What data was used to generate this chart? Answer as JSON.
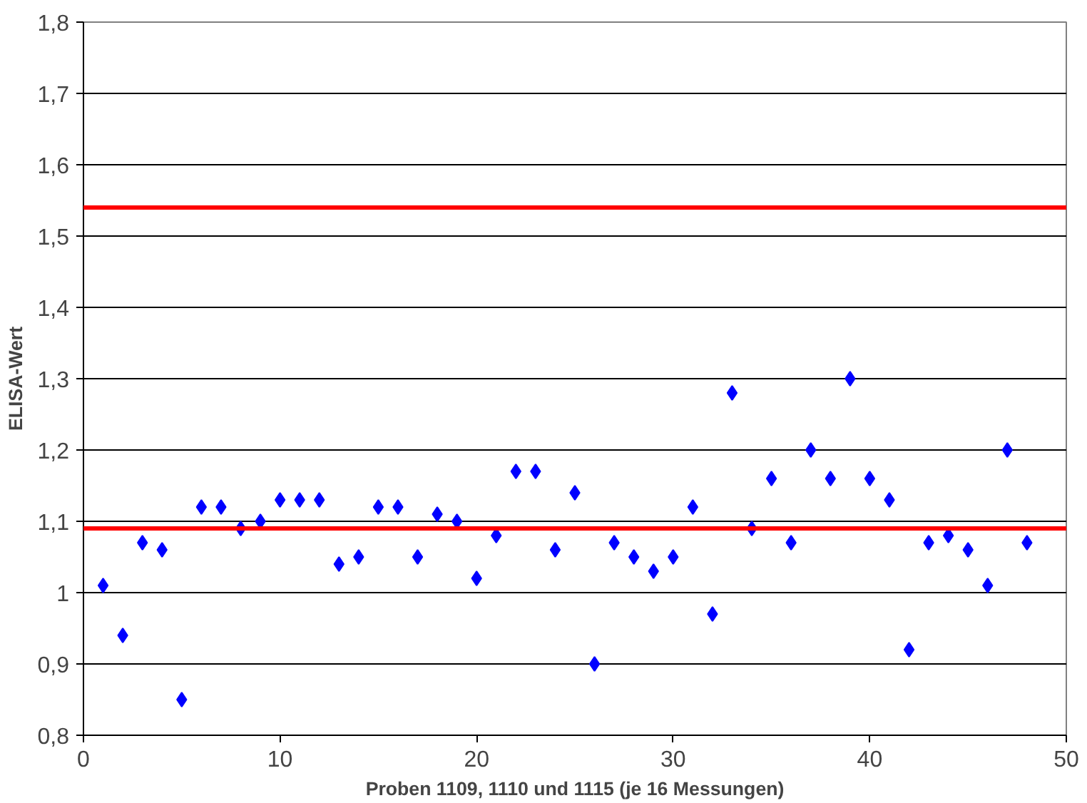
{
  "chart_data": {
    "type": "scatter",
    "xlabel": "Proben 1109, 1110 und 1115 (je 16 Messungen)",
    "ylabel": "ELISA-Wert",
    "x": [
      1,
      2,
      3,
      4,
      5,
      6,
      7,
      8,
      9,
      10,
      11,
      12,
      13,
      14,
      15,
      16,
      17,
      18,
      19,
      20,
      21,
      22,
      23,
      24,
      25,
      26,
      27,
      28,
      29,
      30,
      31,
      32,
      33,
      34,
      35,
      36,
      37,
      38,
      39,
      40,
      41,
      42,
      43,
      44,
      45,
      46,
      47,
      48
    ],
    "series": [
      {
        "color": "#0000ff",
        "values": [
          1.01,
          0.94,
          1.07,
          1.06,
          0.85,
          1.12,
          1.12,
          1.09,
          1.1,
          1.13,
          1.13,
          1.13,
          1.04,
          1.05,
          1.12,
          1.12,
          1.05,
          1.11,
          1.1,
          1.02,
          1.08,
          1.17,
          1.17,
          1.06,
          1.14,
          0.9,
          1.07,
          1.05,
          1.03,
          1.05,
          1.12,
          0.97,
          1.28,
          1.09,
          1.16,
          1.07,
          1.2,
          1.16,
          1.3,
          1.16,
          1.13,
          0.92,
          1.07,
          1.08,
          1.06,
          1.01,
          1.2,
          1.07
        ]
      }
    ],
    "marker": "diamond",
    "grid": "y",
    "xlim": [
      0,
      50
    ],
    "xticks": [
      0,
      10,
      20,
      30,
      40,
      50
    ],
    "ylim": [
      0.8,
      1.8
    ],
    "yticks": [
      {
        "value": 0.8,
        "label": "0,8"
      },
      {
        "value": 0.9,
        "label": "0,9"
      },
      1,
      {
        "value": 1.1,
        "label": "1,1"
      },
      {
        "value": 1.2,
        "label": "1,2"
      },
      {
        "value": 1.3,
        "label": "1,3"
      },
      {
        "value": 1.4,
        "label": "1,4"
      },
      {
        "value": 1.5,
        "label": "1,5"
      },
      {
        "value": 1.6,
        "label": "1,6"
      },
      {
        "value": 1.7,
        "label": "1,7"
      },
      {
        "value": 1.8,
        "label": "1,8"
      }
    ],
    "ref_lines": [
      {
        "axis": "y",
        "value": 1.54,
        "color": "#ff0000"
      },
      {
        "axis": "y",
        "value": 1.09,
        "color": "#ff0000"
      }
    ]
  }
}
